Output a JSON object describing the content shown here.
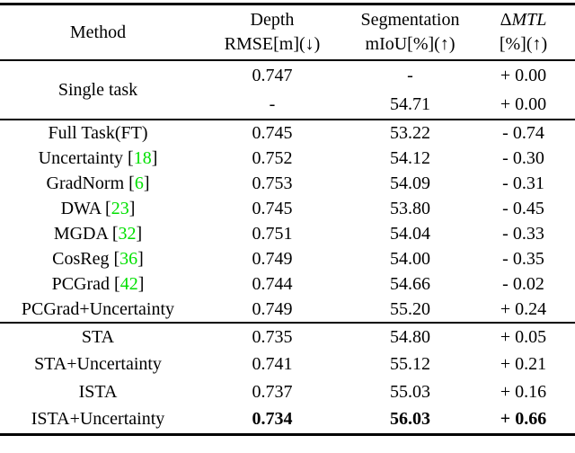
{
  "colors": {
    "citation_green": "#00E000",
    "text": "#000000",
    "rule": "#000000",
    "background": "#FFFFFF"
  },
  "table": {
    "header": {
      "method": "Method",
      "depth": {
        "line1": "Depth",
        "line2": "RMSE[m](↓)"
      },
      "segmentation": {
        "line1": "Segmentation",
        "line2": "mIoU[%](↑)"
      },
      "delta_mtl": {
        "delta": "Δ",
        "name": "MTL",
        "line2": "[%](↑)"
      }
    },
    "punct": {
      "bracket_open": " [",
      "bracket_close": "]"
    },
    "single_task": {
      "label": "Single task",
      "rows": [
        {
          "depth": "0.747",
          "seg": "-",
          "mtl": "+ 0.00"
        },
        {
          "depth": "-",
          "seg": "54.71",
          "mtl": "+ 0.00"
        }
      ]
    },
    "baselines": [
      {
        "method": "Full Task(FT)",
        "depth": "0.745",
        "seg": "53.22",
        "mtl": "- 0.74"
      },
      {
        "method": "Uncertainty",
        "cite": "18",
        "depth": "0.752",
        "seg": "54.12",
        "mtl": "- 0.30"
      },
      {
        "method": "GradNorm",
        "cite": "6",
        "depth": "0.753",
        "seg": "54.09",
        "mtl": "- 0.31"
      },
      {
        "method": "DWA",
        "cite": "23",
        "depth": "0.745",
        "seg": "53.80",
        "mtl": "- 0.45"
      },
      {
        "method": "MGDA",
        "cite": "32",
        "depth": "0.751",
        "seg": "54.04",
        "mtl": "- 0.33"
      },
      {
        "method": "CosReg",
        "cite": "36",
        "depth": "0.749",
        "seg": "54.00",
        "mtl": "- 0.35"
      },
      {
        "method": "PCGrad",
        "cite": "42",
        "depth": "0.744",
        "seg": "54.66",
        "mtl": "- 0.02"
      },
      {
        "method": "PCGrad+Uncertainty",
        "depth": "0.749",
        "seg": "55.20",
        "mtl": "+ 0.24"
      }
    ],
    "ours": [
      {
        "method": "STA",
        "depth": "0.735",
        "seg": "54.80",
        "mtl": "+ 0.05"
      },
      {
        "method": "STA+Uncertainty",
        "depth": "0.741",
        "seg": "55.12",
        "mtl": "+ 0.21"
      },
      {
        "method": "ISTA",
        "depth": "0.737",
        "seg": "55.03",
        "mtl": "+ 0.16"
      },
      {
        "method": "ISTA+Uncertainty",
        "depth": "0.734",
        "seg": "56.03",
        "mtl": "+ 0.66"
      }
    ]
  }
}
